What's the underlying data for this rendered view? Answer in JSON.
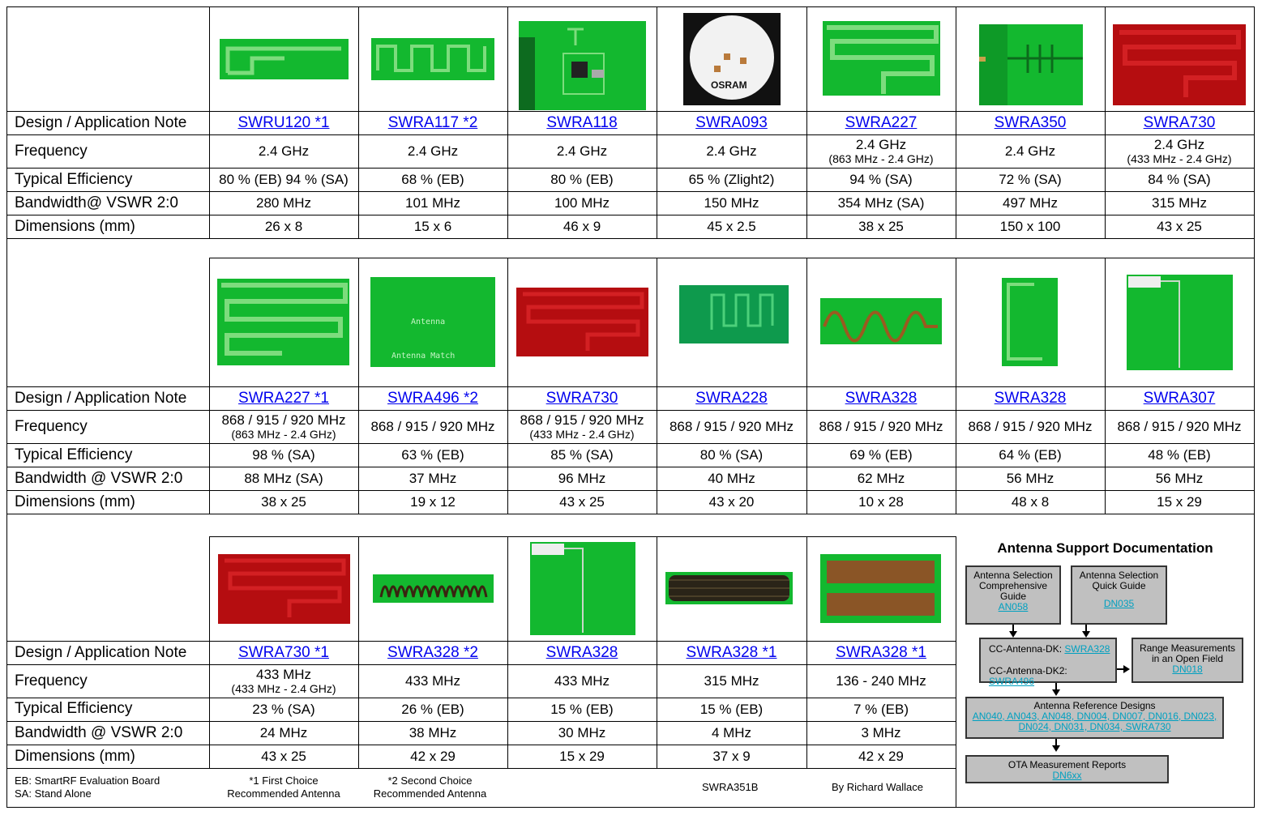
{
  "row_labels": {
    "design": "Design / Application Note",
    "frequency": "Frequency",
    "efficiency": "Typical Efficiency",
    "bandwidth_s1": "Bandwidth@ VSWR 2:0",
    "bandwidth": "Bandwidth @ VSWR 2:0",
    "dimensions": "Dimensions (mm)"
  },
  "section1": [
    {
      "note": "SWRU120 *1",
      "freq": "2.4 GHz",
      "freq_sub": "",
      "eff": "80 % (EB) 94 % (SA)",
      "bw": "280 MHz",
      "dim": "26 x 8"
    },
    {
      "note": "SWRA117 *2",
      "freq": "2.4 GHz",
      "freq_sub": "",
      "eff": "68 % (EB)",
      "bw": "101 MHz",
      "dim": "15 x 6"
    },
    {
      "note": "SWRA118",
      "freq": "2.4 GHz",
      "freq_sub": "",
      "eff": "80 % (EB)",
      "bw": "100 MHz",
      "dim": "46 x 9"
    },
    {
      "note": "SWRA093",
      "freq": "2.4 GHz",
      "freq_sub": "",
      "eff": "65 % (Zlight2)",
      "bw": "150 MHz",
      "dim": "45 x 2.5"
    },
    {
      "note": "SWRA227",
      "freq": "2.4 GHz",
      "freq_sub": "(863 MHz - 2.4 GHz)",
      "eff": "94 % (SA)",
      "bw": "354 MHz (SA)",
      "dim": "38 x 25"
    },
    {
      "note": "SWRA350",
      "freq": "2.4 GHz",
      "freq_sub": "",
      "eff": "72 % (SA)",
      "bw": "497 MHz",
      "dim": "150 x 100"
    },
    {
      "note": "SWRA730",
      "freq": "2.4 GHz",
      "freq_sub": "(433 MHz - 2.4 GHz)",
      "eff": "84 % (SA)",
      "bw": "315 MHz",
      "dim": "43 x 25"
    }
  ],
  "section2": [
    {
      "note": "SWRA227  *1",
      "freq": "868 / 915 / 920 MHz",
      "freq_sub": "(863 MHz - 2.4 GHz)",
      "eff": "98 % (SA)",
      "bw": "88 MHz (SA)",
      "dim": "38 x 25"
    },
    {
      "note": "SWRA496  *2",
      "freq": "868 / 915 / 920 MHz",
      "freq_sub": "",
      "eff": "63 % (EB)",
      "bw": "37 MHz",
      "dim": "19 x 12"
    },
    {
      "note": "SWRA730",
      "freq": "868 / 915 / 920 MHz",
      "freq_sub": "(433 MHz - 2.4 GHz)",
      "eff": "85 % (SA)",
      "bw": "96 MHz",
      "dim": "43 x 25"
    },
    {
      "note": "SWRA228",
      "freq": "868 / 915 / 920 MHz",
      "freq_sub": "",
      "eff": "80 % (SA)",
      "bw": "40 MHz",
      "dim": "43 x 20"
    },
    {
      "note": "SWRA328",
      "freq": "868 / 915 / 920 MHz",
      "freq_sub": "",
      "eff": "69 % (EB)",
      "bw": "62 MHz",
      "dim": "10 x 28"
    },
    {
      "note": "SWRA328",
      "freq": "868 / 915 / 920 MHz",
      "freq_sub": "",
      "eff": "64 % (EB)",
      "bw": "56 MHz",
      "dim": "48 x 8"
    },
    {
      "note": "SWRA307",
      "freq": "868 / 915 / 920 MHz",
      "freq_sub": "",
      "eff": "48 % (EB)",
      "bw": "56 MHz",
      "dim": "15 x 29"
    }
  ],
  "section3": [
    {
      "note": "SWRA730 *1",
      "freq": "433 MHz",
      "freq_sub": "(433 MHz - 2.4 GHz)",
      "eff": "23 % (SA)",
      "bw": "24 MHz",
      "dim": "43 x 25"
    },
    {
      "note": "SWRA328 *2",
      "freq": "433 MHz",
      "freq_sub": "",
      "eff": "26 % (EB)",
      "bw": "38 MHz",
      "dim": "42 x 29"
    },
    {
      "note": "SWRA328",
      "freq": "433 MHz",
      "freq_sub": "",
      "eff": "15 % (EB)",
      "bw": "30 MHz",
      "dim": "15 x 29"
    },
    {
      "note": "SWRA328 *1",
      "freq": "315 MHz",
      "freq_sub": "",
      "eff": "15 % (EB)",
      "bw": "4 MHz",
      "dim": "37 x 9"
    },
    {
      "note": "SWRA328 *1",
      "freq": "136 - 240 MHz",
      "freq_sub": "",
      "eff": "7 % (EB)",
      "bw": "3 MHz",
      "dim": "42 x 29"
    }
  ],
  "footer": {
    "eb": "EB: SmartRF Evaluation Board",
    "sa": "SA: Stand Alone",
    "first1": "*1 First Choice",
    "first2": "Recommended Antenna",
    "second1": "*2 Second Choice",
    "second2": "Recommended Antenna",
    "docid": "SWRA351B",
    "author": "By Richard Wallace"
  },
  "image_text": {
    "osram": "OSRAM",
    "antenna": "Antenna",
    "antenna_match": "Antenna Match"
  },
  "support": {
    "title": "Antenna Support Documentation",
    "box1_l1": "Antenna Selection",
    "box1_l2": "Comprehensive",
    "box1_l3": "Guide",
    "box1_link": "AN058",
    "box2_l1": "Antenna Selection",
    "box2_l2": "Quick Guide",
    "box2_link": "DN035",
    "dk1_label": "CC-Antenna-DK:",
    "dk1_link": "SWRA328",
    "dk2_label": "CC-Antenna-DK2:",
    "dk2_link": "SWRA496",
    "range_l1": "Range Measurements",
    "range_l2": "in an Open Field",
    "range_link": "DN018",
    "ref_title": "Antenna Reference Designs",
    "ref_links1": "AN040, AN043, AN048, DN004, DN007, DN016, DN023,",
    "ref_links2": "DN024, DN031, DN034, SWRA730",
    "ota_title": "OTA Measurement Reports",
    "ota_link": "DN6xx"
  }
}
